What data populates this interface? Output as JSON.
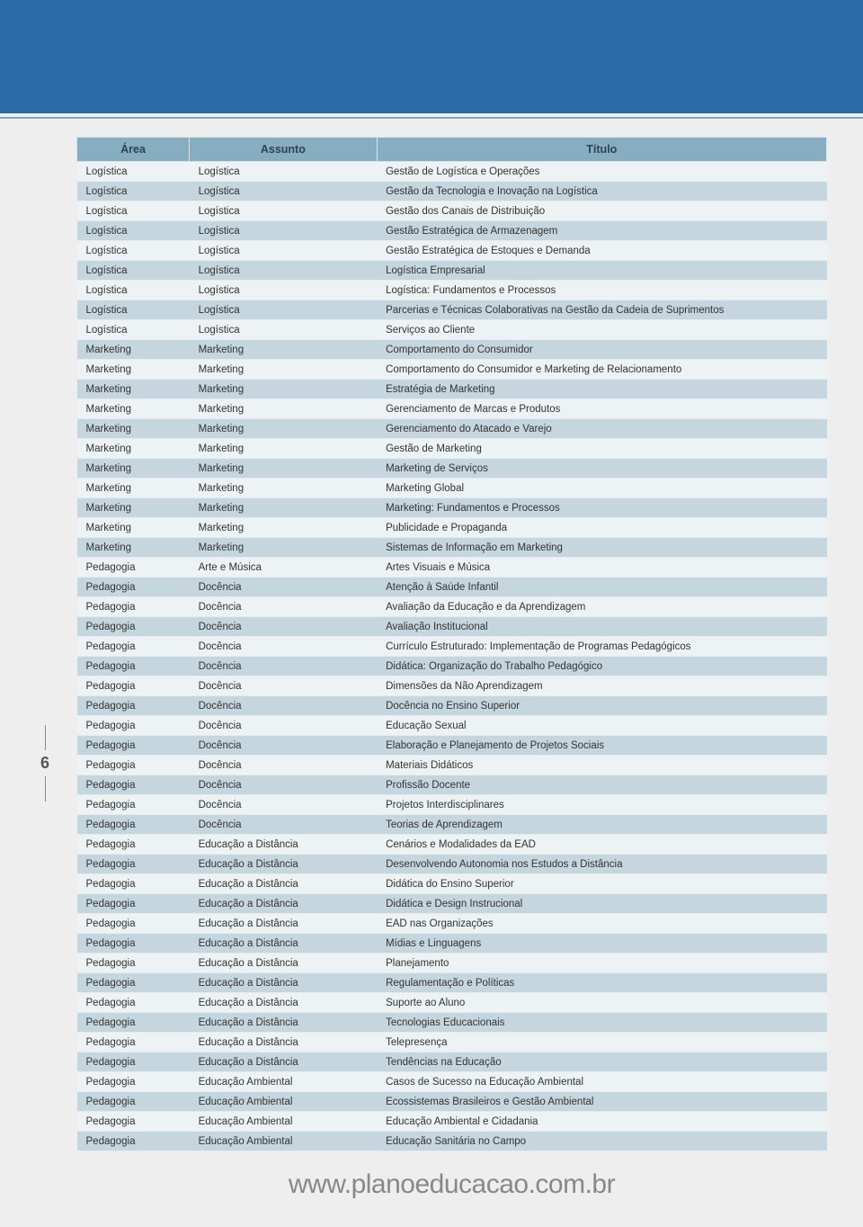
{
  "page_number": "6",
  "footer_url": "www.planoeducacao.com.br",
  "table": {
    "columns": [
      "Área",
      "Assunto",
      "Título"
    ],
    "rows": [
      [
        "Logística",
        "Logística",
        "Gestão de Logística e Operações"
      ],
      [
        "Logística",
        "Logística",
        "Gestão da Tecnologia e Inovação na Logística"
      ],
      [
        "Logística",
        "Logística",
        "Gestão dos Canais de Distribuição"
      ],
      [
        "Logística",
        "Logística",
        "Gestão Estratégica de Armazenagem"
      ],
      [
        "Logística",
        "Logística",
        "Gestão Estratégica de Estoques e Demanda"
      ],
      [
        "Logística",
        "Logística",
        "Logística Empresarial"
      ],
      [
        "Logística",
        "Logística",
        "Logística: Fundamentos e Processos"
      ],
      [
        "Logística",
        "Logística",
        "Parcerias e Técnicas Colaborativas na Gestão da Cadeia de Suprimentos"
      ],
      [
        "Logística",
        "Logística",
        "Serviços ao Cliente"
      ],
      [
        "Marketing",
        "Marketing",
        "Comportamento do Consumidor"
      ],
      [
        "Marketing",
        "Marketing",
        "Comportamento do Consumidor e Marketing de Relacionamento"
      ],
      [
        "Marketing",
        "Marketing",
        "Estratégia de Marketing"
      ],
      [
        "Marketing",
        "Marketing",
        "Gerenciamento de Marcas e Produtos"
      ],
      [
        "Marketing",
        "Marketing",
        "Gerenciamento do Atacado e Varejo"
      ],
      [
        "Marketing",
        "Marketing",
        "Gestão de Marketing"
      ],
      [
        "Marketing",
        "Marketing",
        "Marketing de Serviços"
      ],
      [
        "Marketing",
        "Marketing",
        "Marketing Global"
      ],
      [
        "Marketing",
        "Marketing",
        "Marketing: Fundamentos e Processos"
      ],
      [
        "Marketing",
        "Marketing",
        "Publicidade e Propaganda"
      ],
      [
        "Marketing",
        "Marketing",
        "Sistemas de Informação em Marketing"
      ],
      [
        "Pedagogia",
        "Arte e Música",
        "Artes Visuais e Música"
      ],
      [
        "Pedagogia",
        "Docência",
        "Atenção à Saúde Infantil"
      ],
      [
        "Pedagogia",
        "Docência",
        "Avaliação da Educação e da Aprendizagem"
      ],
      [
        "Pedagogia",
        "Docência",
        "Avaliação Institucional"
      ],
      [
        "Pedagogia",
        "Docência",
        "Currículo Estruturado: Implementação de Programas Pedagógicos"
      ],
      [
        "Pedagogia",
        "Docência",
        "Didática: Organização do Trabalho Pedagógico"
      ],
      [
        "Pedagogia",
        "Docência",
        "Dimensões da Não Aprendizagem"
      ],
      [
        "Pedagogia",
        "Docência",
        "Docência no Ensino Superior"
      ],
      [
        "Pedagogia",
        "Docência",
        "Educação Sexual"
      ],
      [
        "Pedagogia",
        "Docência",
        "Elaboração e Planejamento de Projetos Sociais"
      ],
      [
        "Pedagogia",
        "Docência",
        "Materiais Didáticos"
      ],
      [
        "Pedagogia",
        "Docência",
        "Profissão Docente"
      ],
      [
        "Pedagogia",
        "Docência",
        "Projetos Interdisciplinares"
      ],
      [
        "Pedagogia",
        "Docência",
        "Teorias de Aprendizagem"
      ],
      [
        "Pedagogia",
        "Educação a Distância",
        "Cenários e Modalidades da EAD"
      ],
      [
        "Pedagogia",
        "Educação a Distância",
        "Desenvolvendo Autonomia nos Estudos a Distância"
      ],
      [
        "Pedagogia",
        "Educação a Distância",
        "Didática do Ensino Superior"
      ],
      [
        "Pedagogia",
        "Educação a Distância",
        "Didática e Design Instrucional"
      ],
      [
        "Pedagogia",
        "Educação a Distância",
        "EAD nas Organizações"
      ],
      [
        "Pedagogia",
        "Educação a Distância",
        "Mídias e Linguagens"
      ],
      [
        "Pedagogia",
        "Educação a Distância",
        "Planejamento"
      ],
      [
        "Pedagogia",
        "Educação a Distância",
        "Regulamentação e Políticas"
      ],
      [
        "Pedagogia",
        "Educação a Distância",
        "Suporte ao Aluno"
      ],
      [
        "Pedagogia",
        "Educação a Distância",
        "Tecnologias Educacionais"
      ],
      [
        "Pedagogia",
        "Educação a Distância",
        "Telepresença"
      ],
      [
        "Pedagogia",
        "Educação a Distância",
        "Tendências na Educação"
      ],
      [
        "Pedagogia",
        "Educação Ambiental",
        "Casos de Sucesso na Educação Ambiental"
      ],
      [
        "Pedagogia",
        "Educação Ambiental",
        "Ecossistemas Brasileiros e Gestão Ambiental"
      ],
      [
        "Pedagogia",
        "Educação Ambiental",
        "Educação Ambiental e Cidadania"
      ],
      [
        "Pedagogia",
        "Educação Ambiental",
        "Educação Sanitária no Campo"
      ]
    ]
  },
  "colors": {
    "header_band": "#2b6aa8",
    "page_bg": "#eeeeee",
    "th_bg": "#87adc0",
    "row_odd": "#c5d6de",
    "row_even": "#edf2f4",
    "footer_text": "#888888"
  }
}
